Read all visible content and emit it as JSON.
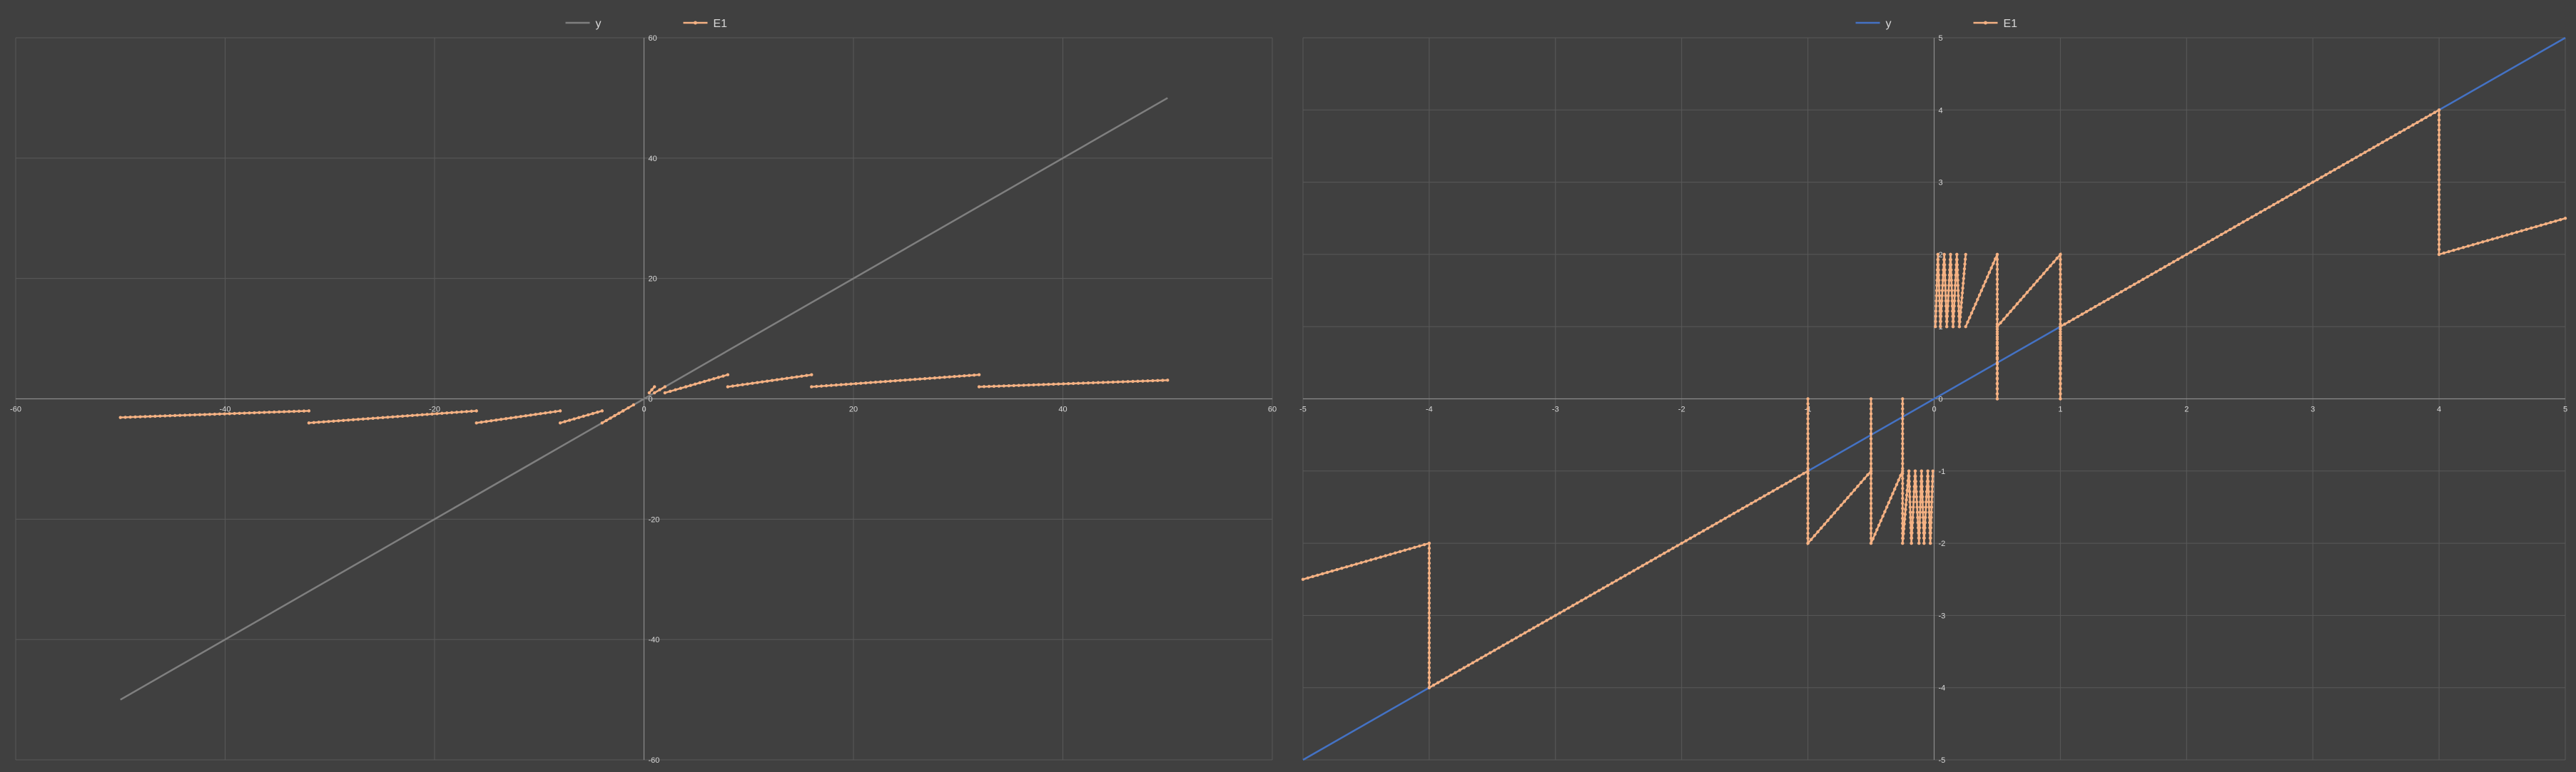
{
  "colors": {
    "background": "#404040",
    "grid": "#595959",
    "axis": "#8c8c8c",
    "text": "#d9d9d9",
    "y_left": "#7f7f7f",
    "y_right": "#4472c4",
    "e1": "#f4b183"
  },
  "chart_data": [
    {
      "type": "line",
      "legend": {
        "position": "top-center",
        "entries": [
          "y",
          "E1"
        ]
      },
      "xlim": [
        -60,
        60
      ],
      "ylim": [
        -60,
        60
      ],
      "grid": true,
      "x_ticks": [
        "-60",
        "-40",
        "-20",
        "0",
        "20",
        "40",
        "60"
      ],
      "y_ticks": [
        "60",
        "40",
        "20",
        "0",
        "-20",
        "-40",
        "-60"
      ],
      "series": [
        {
          "name": "y",
          "color": "#7f7f7f",
          "marker": false,
          "points": [
            [
              -50,
              -50
            ],
            [
              50,
              50
            ]
          ]
        },
        {
          "name": "E1",
          "color": "#f4b183",
          "marker": true,
          "segments": [
            [
              [
                -50,
                -3.1
              ],
              [
                -32,
                -2.0
              ]
            ],
            [
              [
                -32,
                -4.0
              ],
              [
                -16,
                -2.0
              ]
            ],
            [
              [
                -16,
                -4.0
              ],
              [
                -8,
                -2.0
              ]
            ],
            [
              [
                -8,
                -4.0
              ],
              [
                -4,
                -2.0
              ]
            ],
            [
              [
                -4,
                -4.0
              ],
              [
                -2,
                -2.0
              ]
            ],
            [
              [
                -2,
                -2.0
              ],
              [
                -1,
                -1.0
              ]
            ],
            [
              [
                0.5,
                1.0
              ],
              [
                1,
                2.0
              ]
            ],
            [
              [
                1,
                1.0
              ],
              [
                2,
                2.0
              ]
            ],
            [
              [
                2,
                1.0
              ],
              [
                4,
                2.0
              ]
            ],
            [
              [
                4,
                2.0
              ],
              [
                8,
                4.0
              ]
            ],
            [
              [
                8,
                2.0
              ],
              [
                16,
                4.0
              ]
            ],
            [
              [
                16,
                2.0
              ],
              [
                32,
                4.0
              ]
            ],
            [
              [
                32,
                2.0
              ],
              [
                50,
                3.1
              ]
            ]
          ]
        }
      ]
    },
    {
      "type": "line",
      "legend": {
        "position": "top-center",
        "entries": [
          "y",
          "E1"
        ]
      },
      "xlim": [
        -5,
        5
      ],
      "ylim": [
        -5,
        5
      ],
      "grid": true,
      "x_ticks": [
        "-5",
        "-4",
        "-3",
        "-2",
        "-1",
        "0",
        "1",
        "2",
        "3",
        "4",
        "5"
      ],
      "y_ticks": [
        "5",
        "4",
        "3",
        "2",
        "1",
        "0",
        "-1",
        "-2",
        "-3",
        "-4",
        "-5"
      ],
      "series": [
        {
          "name": "y",
          "color": "#4472c4",
          "marker": false,
          "points": [
            [
              -5,
              -5
            ],
            [
              5,
              5
            ]
          ]
        },
        {
          "name": "E1",
          "color": "#f4b183",
          "marker": true,
          "segments": [
            [
              [
                -5,
                -2.5
              ],
              [
                -4,
                -2.0
              ],
              [
                -4,
                -4.0
              ],
              [
                -1,
                -1.0
              ]
            ],
            [
              [
                -1,
                0
              ],
              [
                -1,
                -2.0
              ],
              [
                -0.5,
                -1.0
              ]
            ],
            [
              [
                -0.5,
                0
              ],
              [
                -0.5,
                -2.0
              ],
              [
                -0.25,
                -1.0
              ]
            ],
            [
              [
                -0.25,
                0
              ],
              [
                -0.25,
                -2.0
              ],
              [
                -0.2,
                -1.0
              ],
              [
                -0.18,
                -2.0
              ],
              [
                -0.15,
                -1.0
              ],
              [
                -0.12,
                -2.0
              ],
              [
                -0.1,
                -1.0
              ],
              [
                -0.08,
                -2.0
              ],
              [
                -0.05,
                -1.0
              ],
              [
                -0.03,
                -2.0
              ],
              [
                -0.01,
                -1.0
              ]
            ],
            [
              [
                0.01,
                1.0
              ],
              [
                0.03,
                2.0
              ],
              [
                0.05,
                1.0
              ],
              [
                0.08,
                2.0
              ],
              [
                0.1,
                1.0
              ],
              [
                0.13,
                2.0
              ],
              [
                0.15,
                1.0
              ],
              [
                0.18,
                2.0
              ],
              [
                0.2,
                1.0
              ],
              [
                0.25,
                2.0
              ]
            ],
            [
              [
                0.25,
                1.0
              ],
              [
                0.5,
                2.0
              ],
              [
                0.5,
                0
              ],
              [
                0.5,
                1.0
              ],
              [
                1,
                2.0
              ],
              [
                1,
                0
              ],
              [
                1,
                1.0
              ],
              [
                4,
                4.0
              ],
              [
                4,
                2.0
              ],
              [
                5,
                2.5
              ]
            ]
          ]
        }
      ]
    }
  ]
}
